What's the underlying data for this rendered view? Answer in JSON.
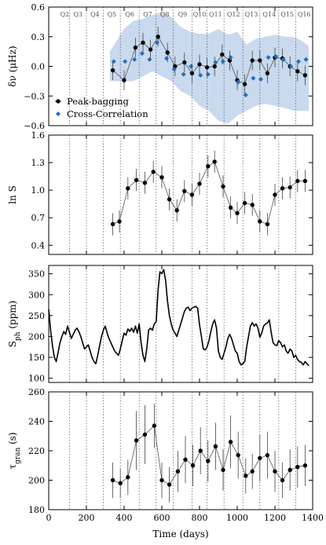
{
  "figure": {
    "xlabel": "Time (days)",
    "x_ticks": [
      0,
      200,
      400,
      600,
      800,
      1000,
      1200,
      1400
    ],
    "xlim": [
      0,
      1400
    ]
  },
  "quarters": {
    "labels": [
      "Q2",
      "Q3",
      "Q4",
      "Q5",
      "Q6",
      "Q7",
      "Q8",
      "Q9",
      "Q10",
      "Q11",
      "Q12",
      "Q13",
      "Q14",
      "Q15",
      "Q16"
    ],
    "boundaries": [
      110,
      200,
      290,
      380,
      480,
      570,
      660,
      760,
      840,
      930,
      1030,
      1120,
      1220,
      1310
    ]
  },
  "chart_data": [
    {
      "type": "scatter",
      "ylabel": "δν (μHz)",
      "ylim": [
        -0.6,
        0.6
      ],
      "y_ticks": [
        -0.6,
        -0.3,
        0.0,
        0.3,
        0.6
      ],
      "y_tick_labels": [
        "−0.6",
        "−0.3",
        "0.0",
        "0.3",
        "0.6"
      ],
      "legend_position": "lower-left",
      "colors": {
        "peak": "#000000",
        "cross": "#1f6fbf",
        "band": "#c9d9ee"
      },
      "band": {
        "x": [
          325,
          400,
          450,
          500,
          550,
          600,
          650,
          700,
          750,
          800,
          850,
          900,
          950,
          1000,
          1050,
          1100,
          1150,
          1200,
          1250,
          1300,
          1350,
          1380
        ],
        "upper": [
          0.15,
          0.38,
          0.46,
          0.48,
          0.52,
          0.55,
          0.5,
          0.4,
          0.35,
          0.33,
          0.33,
          0.38,
          0.32,
          0.35,
          0.22,
          0.28,
          0.3,
          0.32,
          0.3,
          0.3,
          0.25,
          0.2
        ],
        "lower": [
          -0.15,
          -0.15,
          -0.15,
          -0.1,
          -0.05,
          -0.1,
          -0.15,
          -0.25,
          -0.3,
          -0.4,
          -0.45,
          -0.55,
          -0.58,
          -0.5,
          -0.45,
          -0.4,
          -0.38,
          -0.4,
          -0.42,
          -0.45,
          -0.45,
          -0.45
        ]
      },
      "series": [
        {
          "name": "Peak-bagging",
          "x": [
            340,
            400,
            460,
            500,
            540,
            580,
            630,
            670,
            720,
            760,
            800,
            840,
            880,
            920,
            960,
            1000,
            1040,
            1080,
            1120,
            1160,
            1200,
            1240,
            1280,
            1320,
            1360
          ],
          "y": [
            -0.04,
            -0.14,
            0.19,
            0.24,
            0.17,
            0.3,
            0.14,
            0.0,
            0.04,
            -0.07,
            0.02,
            -0.01,
            0.0,
            0.12,
            0.06,
            -0.14,
            -0.18,
            0.06,
            0.06,
            -0.07,
            0.09,
            0.08,
            0.0,
            -0.05,
            -0.09
          ],
          "err": [
            0.1,
            0.1,
            0.1,
            0.1,
            0.1,
            0.1,
            0.1,
            0.1,
            0.1,
            0.1,
            0.1,
            0.1,
            0.1,
            0.1,
            0.1,
            0.1,
            0.1,
            0.1,
            0.1,
            0.1,
            0.1,
            0.1,
            0.1,
            0.1,
            0.1
          ]
        },
        {
          "name": "Cross-Correlation",
          "x": [
            345,
            405,
            455,
            495,
            535,
            575,
            625,
            665,
            715,
            755,
            805,
            845,
            885,
            925,
            965,
            1005,
            1045,
            1085,
            1125,
            1165,
            1205,
            1245,
            1285,
            1325,
            1365
          ],
          "y": [
            0.05,
            0.05,
            0.07,
            0.13,
            0.07,
            0.24,
            0.08,
            -0.03,
            -0.08,
            0.0,
            -0.09,
            -0.08,
            0.04,
            0.05,
            0.09,
            -0.16,
            -0.29,
            -0.12,
            -0.13,
            0.09,
            0.1,
            0.07,
            0.0,
            0.05,
            0.07
          ]
        }
      ]
    },
    {
      "type": "line",
      "ylabel": "ln S",
      "ylim": [
        0.3,
        1.6
      ],
      "y_ticks": [
        0.4,
        0.7,
        1.0,
        1.3,
        1.6
      ],
      "y_tick_labels": [
        "0.4",
        "0.7",
        "1.0",
        "1.3",
        "1.6"
      ],
      "series": [
        {
          "name": "",
          "x": [
            340,
            375,
            420,
            465,
            510,
            555,
            600,
            640,
            680,
            720,
            760,
            800,
            845,
            880,
            925,
            965,
            1000,
            1040,
            1080,
            1120,
            1160,
            1200,
            1240,
            1280,
            1320,
            1360
          ],
          "y": [
            0.63,
            0.66,
            1.02,
            1.11,
            1.08,
            1.2,
            1.14,
            0.9,
            0.78,
            0.99,
            0.95,
            1.07,
            1.26,
            1.31,
            1.04,
            0.81,
            0.75,
            0.86,
            0.84,
            0.66,
            0.63,
            0.95,
            1.02,
            1.03,
            1.1,
            1.1
          ],
          "err": [
            0.12,
            0.12,
            0.12,
            0.12,
            0.12,
            0.12,
            0.12,
            0.12,
            0.12,
            0.12,
            0.12,
            0.12,
            0.12,
            0.12,
            0.12,
            0.12,
            0.12,
            0.12,
            0.12,
            0.12,
            0.12,
            0.12,
            0.12,
            0.12,
            0.12,
            0.12
          ]
        }
      ]
    },
    {
      "type": "line",
      "ylabel": "S_ph (ppm)",
      "ylim": [
        90,
        370
      ],
      "y_ticks": [
        100,
        150,
        200,
        250,
        300,
        350
      ],
      "y_tick_labels": [
        "100",
        "150",
        "200",
        "250",
        "300",
        "350"
      ],
      "series": [
        {
          "name": "",
          "x": [
            0,
            10,
            20,
            30,
            40,
            50,
            60,
            70,
            80,
            90,
            100,
            110,
            120,
            130,
            140,
            150,
            160,
            170,
            180,
            190,
            200,
            210,
            220,
            230,
            240,
            250,
            260,
            270,
            280,
            290,
            300,
            310,
            320,
            330,
            340,
            350,
            360,
            370,
            380,
            390,
            400,
            410,
            420,
            430,
            440,
            450,
            460,
            470,
            480,
            490,
            500,
            510,
            520,
            530,
            540,
            550,
            560,
            570,
            580,
            590,
            600,
            610,
            620,
            630,
            640,
            650,
            660,
            670,
            680,
            690,
            700,
            710,
            720,
            730,
            740,
            750,
            760,
            770,
            780,
            790,
            800,
            810,
            820,
            830,
            840,
            850,
            860,
            870,
            880,
            890,
            900,
            910,
            920,
            930,
            940,
            950,
            960,
            970,
            980,
            990,
            1000,
            1010,
            1020,
            1030,
            1040,
            1050,
            1060,
            1070,
            1080,
            1090,
            1100,
            1110,
            1120,
            1130,
            1140,
            1150,
            1160,
            1170,
            1180,
            1190,
            1200,
            1210,
            1220,
            1230,
            1240,
            1250,
            1260,
            1270,
            1280,
            1290,
            1300,
            1310,
            1320,
            1330,
            1340,
            1350,
            1360,
            1370,
            1380
          ],
          "y": [
            265,
            215,
            178,
            150,
            140,
            162,
            185,
            200,
            212,
            205,
            225,
            210,
            195,
            205,
            215,
            220,
            212,
            200,
            185,
            170,
            175,
            180,
            165,
            150,
            140,
            135,
            155,
            178,
            200,
            215,
            225,
            208,
            195,
            185,
            175,
            165,
            160,
            155,
            170,
            190,
            208,
            203,
            218,
            212,
            220,
            210,
            225,
            208,
            230,
            185,
            155,
            140,
            170,
            215,
            220,
            215,
            230,
            235,
            310,
            355,
            350,
            360,
            335,
            285,
            250,
            230,
            215,
            208,
            200,
            215,
            230,
            245,
            260,
            268,
            270,
            262,
            268,
            270,
            272,
            268,
            228,
            200,
            170,
            168,
            175,
            190,
            212,
            230,
            240,
            220,
            165,
            150,
            145,
            160,
            175,
            195,
            205,
            195,
            180,
            165,
            160,
            140,
            132,
            135,
            140,
            175,
            200,
            225,
            233,
            225,
            230,
            220,
            198,
            208,
            225,
            230,
            232,
            240,
            210,
            185,
            180,
            178,
            190,
            185,
            175,
            180,
            165,
            160,
            170,
            165,
            150,
            155,
            145,
            140,
            138,
            132,
            140,
            135,
            130
          ]
        }
      ]
    },
    {
      "type": "line",
      "ylabel": "τ_gran (s)",
      "ylim": [
        180,
        260
      ],
      "y_ticks": [
        180,
        200,
        220,
        240,
        260
      ],
      "y_tick_labels": [
        "180",
        "200",
        "220",
        "240",
        "260"
      ],
      "series": [
        {
          "name": "",
          "x": [
            340,
            380,
            420,
            465,
            510,
            560,
            600,
            640,
            685,
            725,
            765,
            805,
            845,
            885,
            925,
            965,
            1005,
            1045,
            1080,
            1120,
            1160,
            1200,
            1240,
            1280,
            1320,
            1360
          ],
          "y": [
            200,
            198,
            202,
            227,
            231,
            237,
            200,
            197,
            206,
            214,
            210,
            220,
            213,
            223,
            207,
            226,
            217,
            203,
            206,
            215,
            217,
            206,
            200,
            207,
            209,
            210
          ],
          "err": [
            12,
            10,
            12,
            20,
            20,
            15,
            12,
            12,
            14,
            16,
            14,
            16,
            14,
            16,
            14,
            18,
            16,
            12,
            12,
            16,
            16,
            14,
            12,
            14,
            14,
            14
          ]
        }
      ]
    }
  ]
}
